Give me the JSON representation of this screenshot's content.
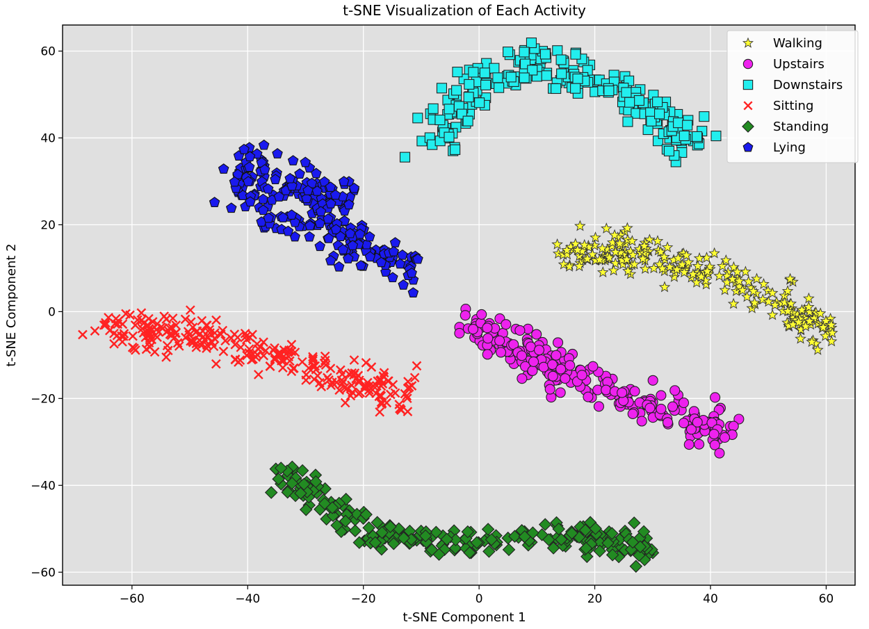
{
  "chart_data": {
    "type": "scatter",
    "title": "t-SNE Visualization of Each Activity",
    "xlabel": "t-SNE Component 1",
    "ylabel": "t-SNE Component 2",
    "xlim": [
      -72,
      65
    ],
    "ylim": [
      -63,
      66
    ],
    "xticks": [
      -60,
      -40,
      -20,
      0,
      20,
      40,
      60
    ],
    "yticks": [
      -60,
      -40,
      -20,
      0,
      20,
      40,
      60
    ],
    "grid": true,
    "background": "#e0e0e0",
    "legend_position": "top-right",
    "series": [
      {
        "name": "Walking",
        "marker": "star",
        "color": "#ffff33",
        "edge": "#333333",
        "seed": 11,
        "path": [
          [
            12,
            13
          ],
          [
            18,
            14
          ],
          [
            22,
            14
          ],
          [
            28,
            14
          ],
          [
            34,
            11
          ],
          [
            40,
            9
          ],
          [
            46,
            6
          ],
          [
            52,
            3
          ],
          [
            56,
            -1
          ],
          [
            60,
            -5
          ]
        ],
        "spread_x": 1.6,
        "spread_y": 2.4,
        "count": 230
      },
      {
        "name": "Upstairs",
        "marker": "circle",
        "color": "#ee22ee",
        "edge": "#222222",
        "seed": 22,
        "path": [
          [
            -1,
            -3
          ],
          [
            4,
            -6
          ],
          [
            8,
            -9
          ],
          [
            12,
            -12
          ],
          [
            16,
            -15
          ],
          [
            22,
            -19
          ],
          [
            28,
            -21
          ],
          [
            34,
            -24
          ],
          [
            39,
            -26
          ],
          [
            42,
            -27
          ]
        ],
        "spread_x": 1.8,
        "spread_y": 2.2,
        "count": 260
      },
      {
        "name": "Downstairs",
        "marker": "square",
        "color": "#22eeee",
        "edge": "#222222",
        "seed": 33,
        "path": [
          [
            -8,
            41
          ],
          [
            -5,
            42
          ],
          [
            -3,
            48
          ],
          [
            0,
            53
          ],
          [
            6,
            56
          ],
          [
            12,
            57
          ],
          [
            18,
            54
          ],
          [
            24,
            50
          ],
          [
            30,
            46
          ],
          [
            34,
            42
          ],
          [
            37,
            39
          ]
        ],
        "spread_x": 1.7,
        "spread_y": 2.3,
        "count": 240
      },
      {
        "name": "Sitting",
        "marker": "x",
        "color": "#ff2222",
        "edge": "#ff2222",
        "seed": 44,
        "path": [
          [
            -65,
            -4
          ],
          [
            -60,
            -5
          ],
          [
            -55,
            -5
          ],
          [
            -50,
            -4
          ],
          [
            -45,
            -6
          ],
          [
            -40,
            -9
          ],
          [
            -35,
            -10
          ],
          [
            -30,
            -11
          ],
          [
            -25,
            -14
          ],
          [
            -20,
            -17
          ],
          [
            -15,
            -18
          ],
          [
            -12,
            -21
          ]
        ],
        "spread_x": 1.8,
        "spread_y": 2.4,
        "count": 260
      },
      {
        "name": "Standing",
        "marker": "diamond",
        "color": "#228b22",
        "edge": "#222222",
        "seed": 55,
        "path": [
          [
            -35,
            -36
          ],
          [
            -30,
            -41
          ],
          [
            -25,
            -45
          ],
          [
            -20,
            -50
          ],
          [
            -12,
            -52
          ],
          [
            -4,
            -53
          ],
          [
            4,
            -52
          ],
          [
            12,
            -51
          ],
          [
            20,
            -52
          ],
          [
            26,
            -53
          ],
          [
            29,
            -56
          ]
        ],
        "spread_x": 1.6,
        "spread_y": 1.6,
        "count": 250
      },
      {
        "name": "Lying",
        "marker": "pentagon",
        "color": "#1a1aee",
        "edge": "#111111",
        "seed": 66,
        "path": [
          [
            -41,
            35
          ],
          [
            -38,
            32
          ],
          [
            -41,
            27
          ],
          [
            -35,
            27
          ],
          [
            -30,
            30
          ],
          [
            -26,
            29
          ],
          [
            -23,
            25
          ],
          [
            -37,
            21
          ],
          [
            -30,
            19
          ],
          [
            -24,
            19
          ],
          [
            -20,
            17
          ],
          [
            -24,
            15
          ],
          [
            -18,
            13
          ],
          [
            -14,
            11
          ],
          [
            -11,
            10
          ]
        ],
        "spread_x": 1.6,
        "spread_y": 2.0,
        "count": 260
      }
    ]
  }
}
